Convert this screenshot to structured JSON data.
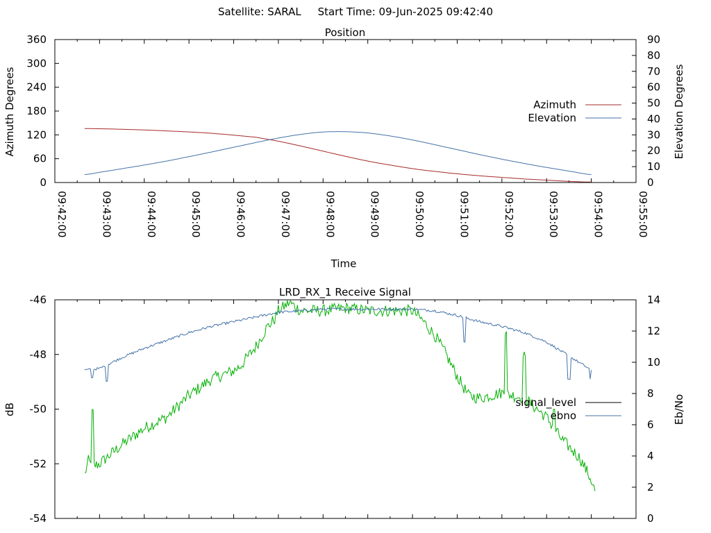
{
  "header": {
    "satellite": "Satellite: SARAL",
    "start_time": "Start Time: 09-Jun-2025 09:42:40"
  },
  "chart_data": [
    {
      "type": "line",
      "title": "Position",
      "xlabel": "Time",
      "ylabel": "Azimuth Degrees",
      "y2label": "Elevation Degrees",
      "xlim": [
        "09:42:00",
        "09:55:00"
      ],
      "ylim": [
        0,
        360
      ],
      "y2lim": [
        0,
        90
      ],
      "x_ticks": [
        "09:42:00",
        "09:43:00",
        "09:44:00",
        "09:45:00",
        "09:46:00",
        "09:47:00",
        "09:48:00",
        "09:49:00",
        "09:50:00",
        "09:51:00",
        "09:52:00",
        "09:53:00",
        "09:54:00",
        "09:55:00"
      ],
      "y_ticks": [
        "0",
        "60",
        "120",
        "180",
        "240",
        "300",
        "360"
      ],
      "y2_ticks": [
        "0",
        "10",
        "20",
        "30",
        "40",
        "50",
        "60",
        "70",
        "80",
        "90"
      ],
      "legend": "right",
      "grid": false,
      "series": [
        {
          "name": "Azimuth",
          "axis": "y",
          "color": "#a52a2a",
          "x": [
            "09:42:40",
            "09:43:30",
            "09:44:30",
            "09:45:30",
            "09:46:30",
            "09:47:00",
            "09:47:30",
            "09:48:00",
            "09:48:30",
            "09:49:00",
            "09:49:30",
            "09:50:00",
            "09:50:30",
            "09:51:00",
            "09:51:30",
            "09:52:00",
            "09:52:30",
            "09:53:00",
            "09:53:30",
            "09:54:00"
          ],
          "values": [
            136,
            134,
            130,
            124,
            114,
            104,
            92,
            79,
            66,
            54,
            44,
            35,
            28,
            22,
            17,
            13,
            9,
            6,
            3,
            1
          ]
        },
        {
          "name": "Elevation",
          "axis": "y2",
          "color": "#4472a8",
          "x": [
            "09:42:40",
            "09:43:00",
            "09:43:30",
            "09:44:00",
            "09:44:30",
            "09:45:00",
            "09:45:30",
            "09:46:00",
            "09:46:30",
            "09:47:00",
            "09:47:30",
            "09:48:00",
            "09:48:30",
            "09:49:00",
            "09:49:30",
            "09:50:00",
            "09:50:30",
            "09:51:00",
            "09:51:30",
            "09:52:00",
            "09:52:30",
            "09:53:00",
            "09:53:30",
            "09:54:00"
          ],
          "values": [
            5,
            6.5,
            8.7,
            11,
            13.5,
            16.3,
            19.2,
            22.2,
            25.2,
            28,
            30.3,
            31.8,
            32,
            31.2,
            29.3,
            26.8,
            23.8,
            20.7,
            17.6,
            14.7,
            12,
            9.5,
            7.2,
            5
          ]
        }
      ]
    },
    {
      "type": "line",
      "title": "LRD_RX_1 Receive Signal",
      "xlabel": "",
      "ylabel": "dB",
      "y2label": "Eb/No",
      "xlim": [
        "09:42:00",
        "09:55:00"
      ],
      "ylim": [
        -54,
        -46
      ],
      "y2lim": [
        0,
        14
      ],
      "y_ticks": [
        "-46",
        "-48",
        "-50",
        "-52",
        "-54"
      ],
      "y2_ticks": [
        "0",
        "2",
        "4",
        "6",
        "8",
        "10",
        "12",
        "14"
      ],
      "legend": "right",
      "grid": false,
      "series": [
        {
          "name": "signal_level",
          "axis": "y",
          "color": "#00b000",
          "x": [
            "09:42:40",
            "09:42:45",
            "09:42:50",
            "09:43:00",
            "09:43:30",
            "09:44:00",
            "09:44:30",
            "09:45:00",
            "09:45:30",
            "09:46:00",
            "09:46:10",
            "09:46:30",
            "09:46:45",
            "09:46:55",
            "09:47:00",
            "09:47:15",
            "09:47:30",
            "09:48:00",
            "09:48:30",
            "09:49:00",
            "09:49:30",
            "09:50:00",
            "09:50:15",
            "09:50:30",
            "09:50:45",
            "09:51:00",
            "09:51:15",
            "09:51:30",
            "09:52:00",
            "09:52:30",
            "09:53:00",
            "09:53:20",
            "09:53:45",
            "09:54:00",
            "09:54:05"
          ],
          "values": [
            -52.4,
            -51.9,
            -52.1,
            -52.0,
            -51.3,
            -50.7,
            -50.3,
            -49.5,
            -48.9,
            -48.6,
            -48.4,
            -47.7,
            -47.0,
            -46.7,
            -46.4,
            -46.1,
            -46.4,
            -46.4,
            -46.3,
            -46.4,
            -46.4,
            -46.4,
            -46.8,
            -47.3,
            -48.0,
            -48.8,
            -49.5,
            -49.6,
            -49.4,
            -49.6,
            -50.3,
            -51.1,
            -51.8,
            -52.6,
            -53.0
          ],
          "spikes": [
            [
              "09:42:50",
              -50.1
            ],
            [
              "09:52:05",
              -47.2
            ],
            [
              "09:52:30",
              -48.0
            ],
            [
              "09:53:10",
              -50.0
            ]
          ]
        },
        {
          "name": "ebno",
          "axis": "y2",
          "color": "#4472a8",
          "x": [
            "09:42:40",
            "09:43:00",
            "09:43:30",
            "09:44:00",
            "09:44:30",
            "09:45:00",
            "09:45:30",
            "09:46:00",
            "09:46:30",
            "09:47:00",
            "09:47:30",
            "09:48:00",
            "09:48:30",
            "09:49:00",
            "09:49:30",
            "09:50:00",
            "09:50:30",
            "09:51:00",
            "09:51:30",
            "09:52:00",
            "09:52:30",
            "09:53:00",
            "09:53:30",
            "09:54:00"
          ],
          "values": [
            9.5,
            9.6,
            10.3,
            10.9,
            11.4,
            11.9,
            12.3,
            12.6,
            12.9,
            13.2,
            13.3,
            13.4,
            13.4,
            13.4,
            13.4,
            13.4,
            13.3,
            13.0,
            12.6,
            12.3,
            11.9,
            11.3,
            10.4,
            9.5
          ],
          "dips": [
            [
              "09:42:50",
              9.0
            ],
            [
              "09:43:10",
              8.8
            ],
            [
              "09:51:10",
              11.3
            ],
            [
              "09:53:30",
              8.9
            ],
            [
              "09:54:00",
              8.9
            ]
          ]
        }
      ]
    }
  ]
}
